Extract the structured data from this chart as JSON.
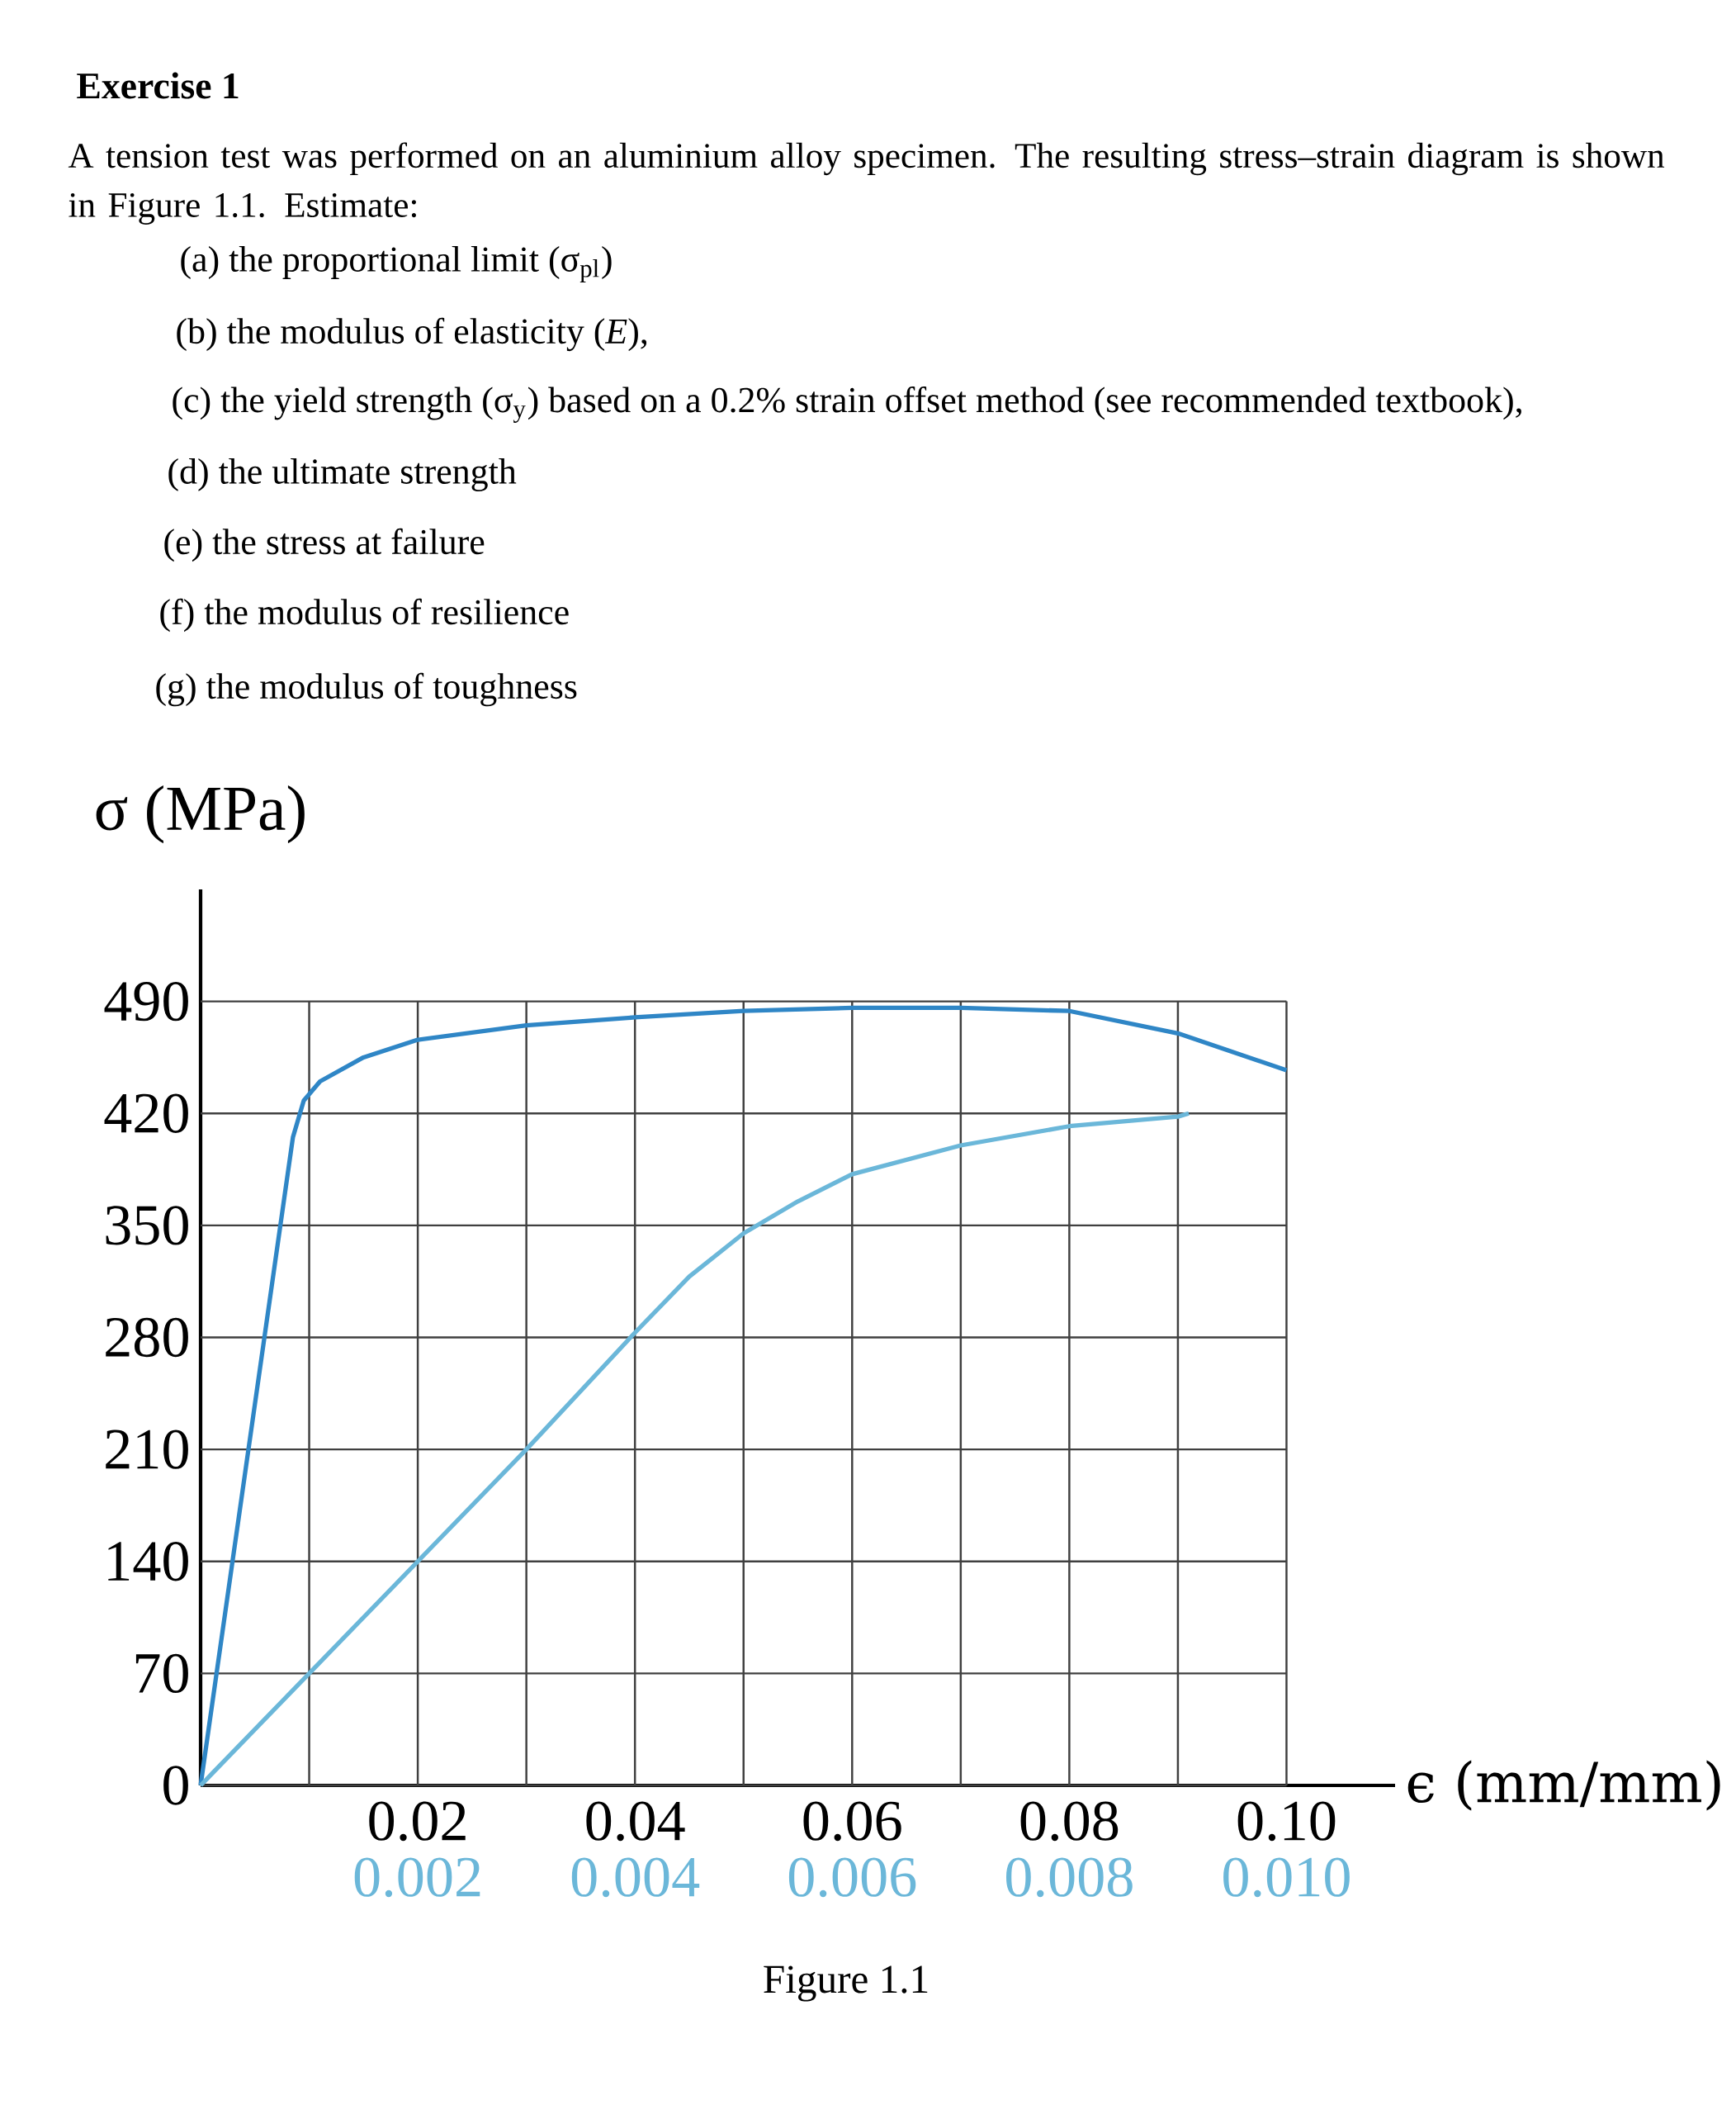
{
  "chart_data": {
    "type": "line",
    "title": "Exercise 1",
    "annotations": [
      "A tension test was performed on an aluminium alloy specimen. The resulting stress–strain diagram is shown in Figure 1.1. Estimate:",
      "(a) the proportional limit (σ$_{pl}$)",
      "(b) the modulus of elasticity (*E*),",
      "(c) the yield strength (σ$_{y}$) based on a 0.2% strain offset method (see recommended textbook),",
      "(d) the ultimate strength",
      "(e) the stress at failure",
      "(f) the modulus of resilience",
      "(g) the modulus of toughness",
      "Figure 1.1"
    ],
    "xlabel": "ϵ (mm/mm)",
    "ylabel": "σ (MPa)",
    "xlim": [
      0,
      0.11
    ],
    "ylim": [
      0,
      560
    ],
    "xticks": [
      {
        "value": 0.01,
        "label": null
      },
      0.02,
      {
        "value": 0.03,
        "label": null
      },
      0.04,
      {
        "value": 0.05,
        "label": null
      },
      0.06,
      {
        "value": 0.07,
        "label": null
      },
      0.08,
      {
        "value": 0.09,
        "label": null
      },
      {
        "value": 0.1,
        "label": "0.10"
      }
    ],
    "x2lim": [
      0,
      0.011
    ],
    "x2ticks": [
      0.002,
      0.004,
      0.006,
      0.008,
      {
        "value": 0.01,
        "label": "0.010"
      }
    ],
    "yticks": [
      0,
      70,
      140,
      210,
      280,
      350,
      420,
      490
    ],
    "grid": true,
    "marker": "none",
    "line_style": "solid",
    "series": [
      {
        "color": "#2f86c6",
        "x": [
          0,
          0.0085,
          0.0095,
          0.011,
          0.015,
          0.02,
          0.03,
          0.04,
          0.05,
          0.06,
          0.07,
          0.08,
          0.09,
          0.1
        ],
        "values": [
          0,
          405,
          428,
          440,
          455,
          466,
          475,
          480,
          484,
          486,
          486,
          484,
          470,
          447
        ]
      },
      {
        "color": "#6bb7d9",
        "axis": "x2",
        "x": [
          0,
          0.001,
          0.002,
          0.003,
          0.004,
          0.0045,
          0.005,
          0.0055,
          0.006,
          0.007,
          0.008,
          0.009,
          0.0091
        ],
        "values": [
          0,
          70,
          140,
          210,
          283,
          318,
          345,
          365,
          382,
          400,
          412,
          418,
          420
        ]
      }
    ]
  }
}
